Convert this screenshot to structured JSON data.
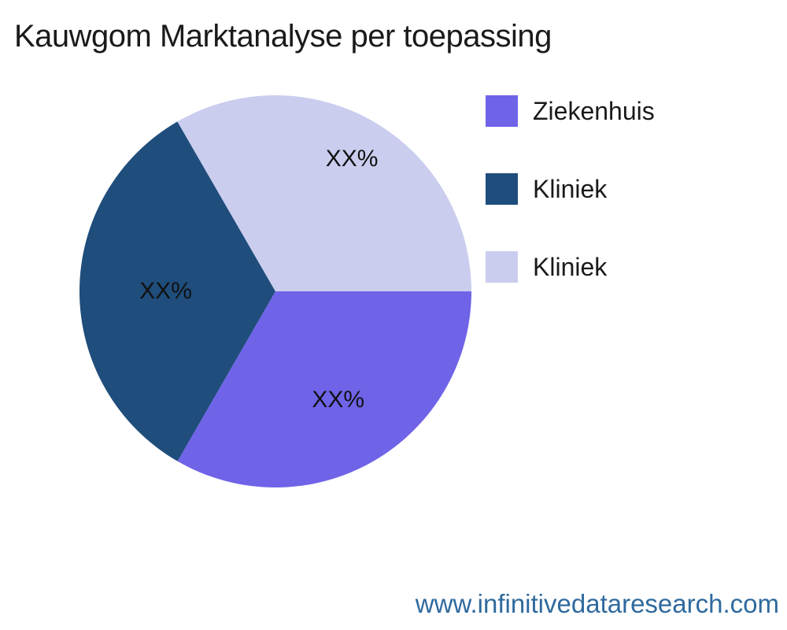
{
  "title": {
    "text": "Kauwgom Marktanalyse per toepassing"
  },
  "chart_data": {
    "type": "pie",
    "title": "Kauwgom Marktanalyse per toepassing",
    "start_angle_deg": 0,
    "direction": "clockwise",
    "legend_position": "right",
    "background": "#ffffff",
    "slices": [
      {
        "label": "Ziekenhuis",
        "value": 33.33,
        "display_pct": "XX%",
        "color": "#6f63e8",
        "label_distance": 0.64
      },
      {
        "label": "Kliniek",
        "value": 33.33,
        "display_pct": "XX%",
        "color": "#1f4d7c",
        "label_distance": 0.56
      },
      {
        "label": "Kliniek",
        "value": 33.34,
        "display_pct": "XX%",
        "color": "#cacdee",
        "label_distance": 0.78
      }
    ]
  },
  "footer": {
    "link_text": "www.infinitivedataresearch.com",
    "color": "#2f6a9e"
  }
}
